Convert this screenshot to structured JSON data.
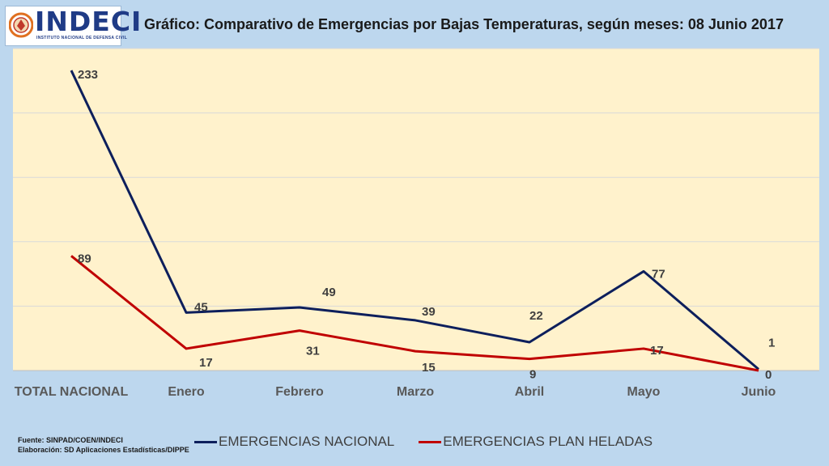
{
  "header": {
    "logo_text": "INDECI",
    "logo_subtext": "INSTITUTO NACIONAL DE DEFENSA CIVIL",
    "title": "Gráfico: Comparativo de Emergencias por Bajas Temperaturas, según meses: 08 Junio 2017"
  },
  "footer": {
    "source_line1": "Fuente: SINPAD/COEN/INDECI",
    "source_line2": "Elaboración: SD Aplicaciones Estadísticas/DIPPE"
  },
  "colors": {
    "nacional": "#0d1f5c",
    "heladas": "#c00000",
    "plot_background": "#fff2cc",
    "page_background": "#bdd7ee"
  },
  "chart_data": {
    "type": "line",
    "title": "Gráfico: Comparativo de Emergencias por Bajas Temperaturas, según meses: 08 Junio 2017",
    "categories": [
      "TOTAL NACIONAL",
      "Enero",
      "Febrero",
      "Marzo",
      "Abril",
      "Mayo",
      "Junio"
    ],
    "series": [
      {
        "name": "EMERGENCIAS NACIONAL",
        "values": [
          233,
          45,
          49,
          39,
          22,
          77,
          1
        ]
      },
      {
        "name": "EMERGENCIAS PLAN HELADAS",
        "values": [
          89,
          17,
          31,
          15,
          9,
          17,
          0
        ]
      }
    ],
    "ylim": [
      0,
      250
    ],
    "grid": true,
    "legend": "bottom"
  }
}
